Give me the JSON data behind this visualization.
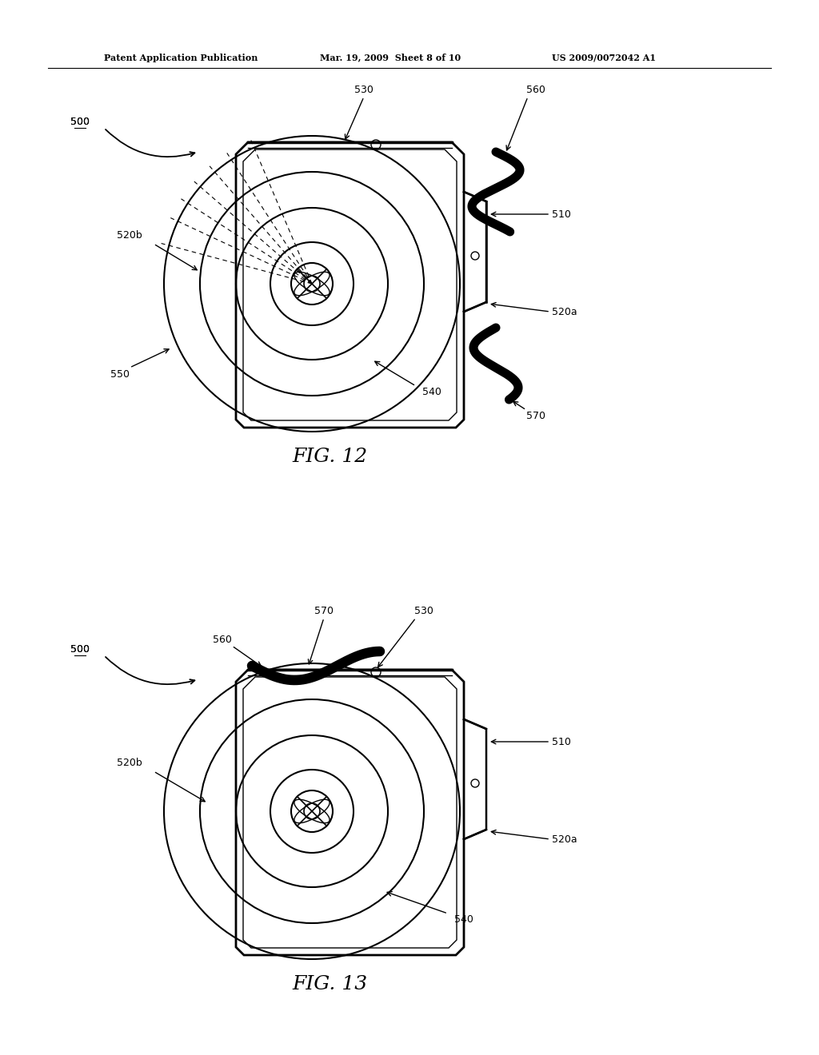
{
  "bg_color": "#ffffff",
  "line_color": "#000000",
  "header_left": "Patent Application Publication",
  "header_mid": "Mar. 19, 2009  Sheet 8 of 10",
  "header_right": "US 2009/0072042 A1",
  "fig12_caption": "FIG. 12",
  "fig13_caption": "FIG. 13"
}
